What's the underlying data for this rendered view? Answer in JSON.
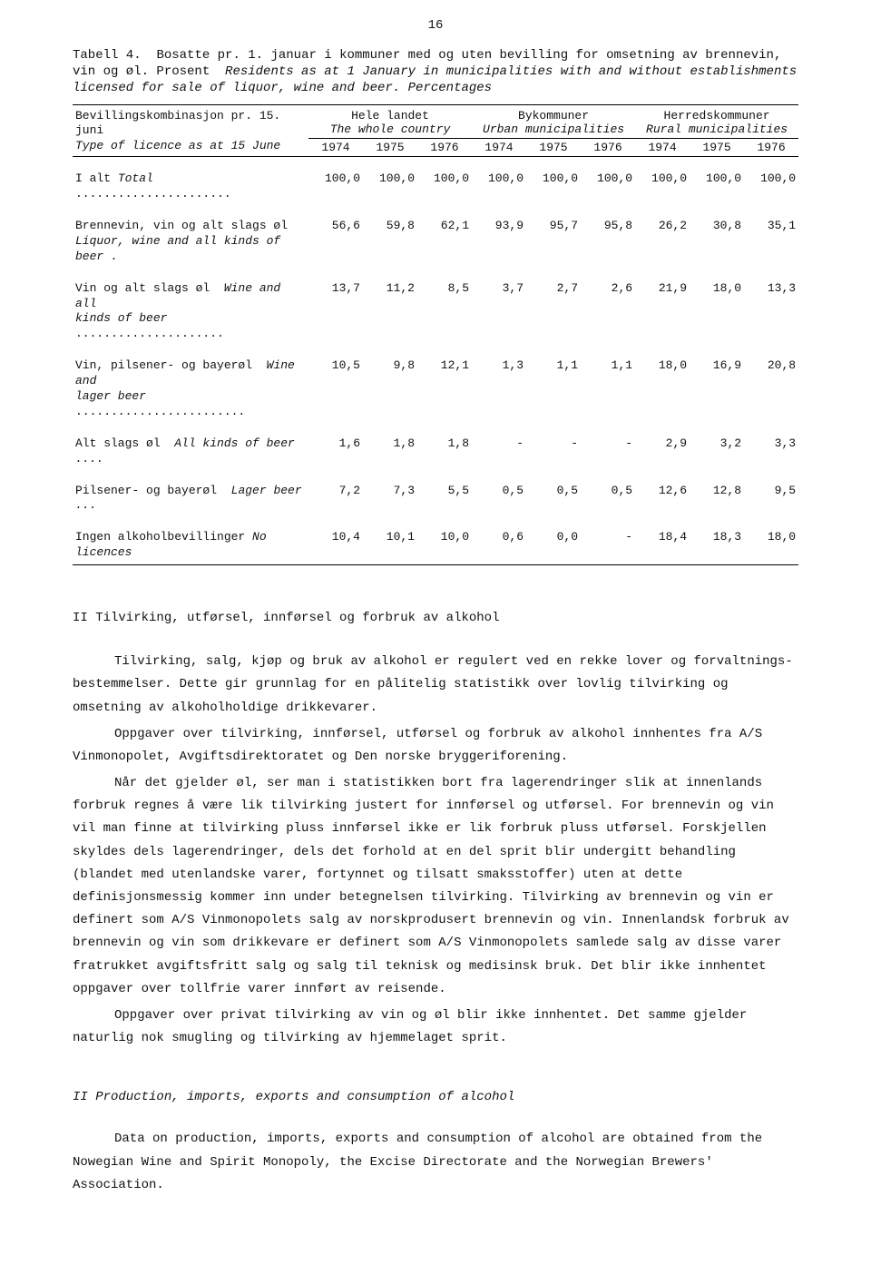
{
  "page_number": "16",
  "caption": {
    "label": "Tabell 4.",
    "nor": "Bosatte pr. 1. januar i kommuner med og uten bevilling for omsetning av brennevin, vin og øl. Prosent",
    "eng": "Residents as at 1 January in municipalities with and without establishments licensed for sale of liquor, wine and beer. Percentages"
  },
  "table": {
    "stub_nor": "Bevillingskombinasjon pr. 15. juni",
    "stub_eng": "Type of licence as at 15 June",
    "groups": [
      {
        "nor": "Hele landet",
        "eng": "The whole country"
      },
      {
        "nor": "Bykommuner",
        "eng": "Urban municipalities"
      },
      {
        "nor": "Herredskommuner",
        "eng": "Rural municipalities"
      }
    ],
    "years": [
      "1974",
      "1975",
      "1976",
      "1974",
      "1975",
      "1976",
      "1974",
      "1975",
      "1976"
    ],
    "rows": [
      {
        "nor": "I alt",
        "eng": "Total",
        "vals": [
          "100,0",
          "100,0",
          "100,0",
          "100,0",
          "100,0",
          "100,0",
          "100,0",
          "100,0",
          "100,0"
        ]
      },
      {
        "nor": "Brennevin, vin og alt slags øl",
        "eng": "Liquor, wine and all kinds of beer .",
        "vals": [
          "56,6",
          "59,8",
          "62,1",
          "93,9",
          "95,7",
          "95,8",
          "26,2",
          "30,8",
          "35,1"
        ]
      },
      {
        "nor": "Vin og alt slags øl",
        "eng": "Wine and all kinds of beer",
        "vals": [
          "13,7",
          "11,2",
          "8,5",
          "3,7",
          "2,7",
          "2,6",
          "21,9",
          "18,0",
          "13,3"
        ]
      },
      {
        "nor": "Vin, pilsener- og bayerøl",
        "eng": "Wine and lager beer",
        "vals": [
          "10,5",
          "9,8",
          "12,1",
          "1,3",
          "1,1",
          "1,1",
          "18,0",
          "16,9",
          "20,8"
        ]
      },
      {
        "nor": "Alt slags øl",
        "eng": "All kinds of beer ....",
        "vals": [
          "1,6",
          "1,8",
          "1,8",
          "-",
          "-",
          "-",
          "2,9",
          "3,2",
          "3,3"
        ]
      },
      {
        "nor": "Pilsener- og bayerøl",
        "eng": "Lager beer ...",
        "vals": [
          "7,2",
          "7,3",
          "5,5",
          "0,5",
          "0,5",
          "0,5",
          "12,6",
          "12,8",
          "9,5"
        ]
      },
      {
        "nor": "Ingen alkoholbevillinger",
        "eng": "No licences",
        "vals": [
          "10,4",
          "10,1",
          "10,0",
          "0,6",
          "0,0",
          "-",
          "18,4",
          "18,3",
          "18,0"
        ]
      }
    ]
  },
  "section2_head": "II Tilvirking, utførsel, innførsel og forbruk av alkohol",
  "para1": "Tilvirking, salg, kjøp og bruk av alkohol er regulert ved en rekke lover og forvaltnings­bestemmelser. Dette gir grunnlag for en pålitelig statistikk over lovlig tilvirking og omsetning av alkoholholdige drikkevarer.",
  "para2": "Oppgaver over tilvirking, innførsel, utførsel og forbruk av alkohol innhentes fra A/S Vin­monopolet, Avgiftsdirektoratet og Den norske bryggeriforening.",
  "para3": "Når det gjelder øl, ser man i statistikken bort fra lagerendringer slik at innenlands forbruk regnes å være lik tilvirking justert for innførsel og utførsel. For brennevin og vin vil man finne at tilvirking pluss innførsel ikke er lik forbruk pluss utførsel. Forskjellen skyldes dels lager­endringer, dels det forhold at en del sprit blir undergitt behandling (blandet med utenlandske varer, fortynnet og tilsatt smaksstoffer) uten at dette definisjonsmessig kommer inn under betegnelsen til­virking. Tilvirking av brennevin og vin er definert som A/S Vinmonopolets salg av norskprodusert brennevin og vin. Innenlandsk forbruk av brennevin og vin som drikkevare er definert som A/S Vinmono­polets samlede salg av disse varer fratrukket avgiftsfritt salg og salg til teknisk og medisinsk bruk. Det blir ikke innhentet oppgaver over tollfrie varer innført av reisende.",
  "para4": "Oppgaver over privat tilvirking av vin og øl blir ikke innhentet. Det samme gjelder naturlig nok smugling og tilvirking av hjemmelaget sprit.",
  "section2_eng_head": "II Production, imports, exports and consumption of alcohol",
  "para_eng": "Data on production, imports, exports and consumption of alcohol are obtained from the Nowegian Wine and Spirit Monopoly, the Excise Directorate and the Norwegian Brewers' Association."
}
